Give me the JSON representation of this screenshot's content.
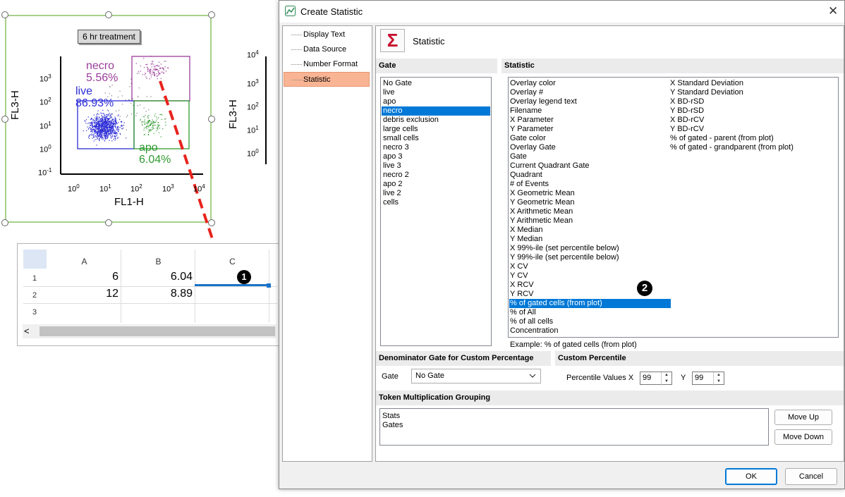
{
  "plot": {
    "title": "6 hr treatment",
    "xlabel": "FL1-H",
    "ylabel": "FL3-H",
    "second_ylabel": "FL3-H",
    "x_tick_exponents": [
      "0",
      "1",
      "2",
      "3",
      "4"
    ],
    "y_tick_exponents": [
      "-1",
      "0",
      "1",
      "2",
      "3"
    ],
    "gates": [
      {
        "name": "necro",
        "percent": "5.56%",
        "color": "#9b3d9b"
      },
      {
        "name": "live",
        "percent": "86.93%",
        "color": "#2c2cd6"
      },
      {
        "name": "apo",
        "percent": "6.04%",
        "color": "#2f9a2f"
      }
    ],
    "tick_base": "10"
  },
  "sheet": {
    "columns": [
      "A",
      "B",
      "C"
    ],
    "rows": [
      {
        "num": "1",
        "a": "6",
        "b": "6.04",
        "c": ""
      },
      {
        "num": "2",
        "a": "12",
        "b": "8.89",
        "c": ""
      },
      {
        "num": "3",
        "a": "",
        "b": "",
        "c": ""
      }
    ],
    "scroll_left": "<"
  },
  "badges": {
    "one": "1",
    "two": "2"
  },
  "dialog": {
    "title": "Create Statistic",
    "close": "✕",
    "nav": [
      "Display Text",
      "Data Source",
      "Number Format",
      "Statistic"
    ],
    "selected_nav": "Statistic",
    "header_icon": "Σ",
    "header_title": "Statistic",
    "gate_header": "Gate",
    "gates": [
      "No Gate",
      "live",
      "apo",
      "necro",
      "debris exclusion",
      "large cells",
      "small cells",
      "necro 3",
      "apo 3",
      "live 3",
      "necro 2",
      "apo 2",
      "live 2",
      "cells"
    ],
    "selected_gate": "necro",
    "statistic_header": "Statistic",
    "statistics_col1": [
      "Overlay color",
      "Overlay #",
      "Overlay legend text",
      "Filename",
      "X Parameter",
      "Y Parameter",
      "Gate color",
      "Overlay Gate",
      "Gate",
      "Current Quadrant Gate",
      "Quadrant",
      "# of Events",
      "X Geometric Mean",
      "Y Geometric Mean",
      "X Arithmetic Mean",
      "Y Arithmetic Mean",
      "X Median",
      "Y Median",
      "X 99%-ile (set percentile below)",
      "Y 99%-ile (set percentile below)",
      "X CV",
      "Y CV",
      "X RCV",
      "Y RCV",
      "% of gated cells (from plot)",
      "% of All",
      "% of all cells",
      "Concentration"
    ],
    "statistics_col2": [
      "X Standard Deviation",
      "Y Standard Deviation",
      "X BD-rSD",
      "Y BD-rSD",
      "X BD-rCV",
      "Y BD-rCV",
      "% of gated - parent (from plot)",
      "% of gated - grandparent (from plot)"
    ],
    "selected_statistic": "% of gated cells (from plot)",
    "example": "Example: % of gated cells (from plot)",
    "denominator_header": "Denominator Gate for Custom Percentage",
    "denominator_label": "Gate",
    "denominator_value": "No Gate",
    "percentile_header": "Custom Percentile",
    "percentile_label": "Percentile Values X",
    "percentile_x": "99",
    "percentile_y_label": "Y",
    "percentile_y": "99",
    "token_header": "Token Multiplication Grouping",
    "token_items": [
      "Stats",
      "Gates"
    ],
    "move_up": "Move Up",
    "move_down": "Move Down",
    "ok": "OK",
    "cancel": "Cancel"
  },
  "colors": {
    "accent": "#0078d7",
    "selected_nav": "#f9b494",
    "arrow": "#e8231d",
    "gate_frame": "#a6d08b"
  }
}
